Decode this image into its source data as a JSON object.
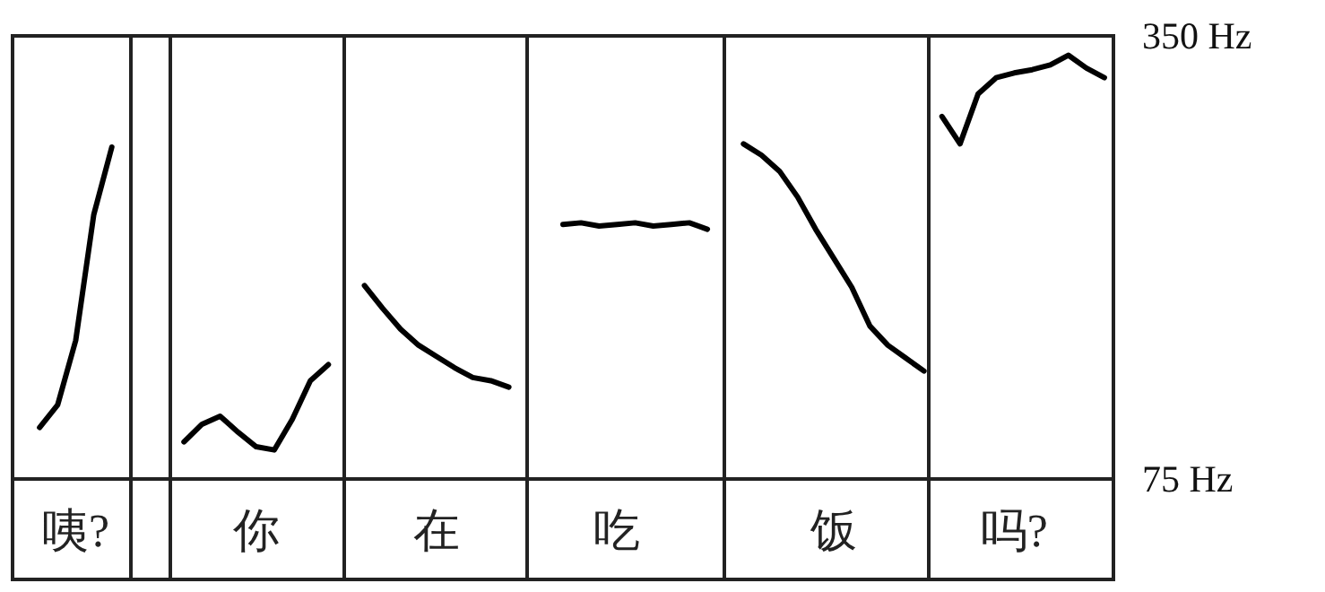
{
  "chart_data": {
    "type": "line",
    "categories": [
      null,
      null,
      null,
      "咦?",
      null,
      null,
      null,
      null,
      null,
      null,
      null,
      null,
      null,
      "你",
      null,
      null,
      null,
      null,
      null,
      null,
      null,
      null,
      null,
      "在",
      null,
      null,
      null,
      null,
      null,
      null,
      null,
      null,
      null,
      "吃",
      null,
      null,
      null,
      null,
      null,
      null,
      null,
      null,
      null,
      null,
      null,
      "饭",
      null,
      null,
      null,
      null,
      null,
      null,
      null,
      null,
      null,
      "吗?",
      null,
      null,
      null,
      null,
      null
    ],
    "series": [
      {
        "color": "#000000",
        "values": [
          null,
          107,
          121,
          161,
          239,
          281,
          null,
          null,
          null,
          null,
          null,
          null,
          null,
          null,
          null,
          null,
          null,
          null,
          null,
          null,
          null,
          null,
          null,
          null,
          null,
          null,
          null,
          null,
          null,
          null,
          null,
          null,
          null,
          null,
          null,
          null,
          null,
          null,
          null,
          null,
          null,
          null,
          null,
          null,
          null,
          null,
          null,
          null,
          null,
          null,
          null,
          null,
          null,
          null,
          null,
          null,
          null,
          null,
          null,
          null,
          null
        ]
      },
      {
        "color": "#000000",
        "values": [
          null,
          null,
          null,
          null,
          null,
          null,
          null,
          null,
          null,
          98,
          109,
          114,
          104,
          95,
          93,
          112,
          136,
          146,
          null,
          null,
          null,
          null,
          null,
          null,
          null,
          null,
          null,
          null,
          null,
          null,
          null,
          null,
          null,
          null,
          null,
          null,
          null,
          null,
          null,
          null,
          null,
          null,
          null,
          null,
          null,
          null,
          null,
          null,
          null,
          null,
          null,
          null,
          null,
          null,
          null,
          null,
          null,
          null,
          null,
          null,
          null
        ]
      },
      {
        "color": "#000000",
        "values": [
          null,
          null,
          null,
          null,
          null,
          null,
          null,
          null,
          null,
          null,
          null,
          null,
          null,
          null,
          null,
          null,
          null,
          null,
          null,
          195,
          181,
          168,
          158,
          151,
          144,
          138,
          136,
          132,
          null,
          null,
          null,
          null,
          null,
          null,
          null,
          null,
          null,
          null,
          null,
          null,
          null,
          null,
          null,
          null,
          null,
          null,
          null,
          null,
          null,
          null,
          null,
          null,
          null,
          null,
          null,
          null,
          null,
          null,
          null,
          null,
          null
        ]
      },
      {
        "color": "#000000",
        "values": [
          null,
          null,
          null,
          null,
          null,
          null,
          null,
          null,
          null,
          null,
          null,
          null,
          null,
          null,
          null,
          null,
          null,
          null,
          null,
          null,
          null,
          null,
          null,
          null,
          null,
          null,
          null,
          null,
          null,
          null,
          233,
          234,
          232,
          233,
          234,
          232,
          233,
          234,
          230,
          null,
          null,
          null,
          null,
          null,
          null,
          null,
          null,
          null,
          null,
          null,
          null,
          null,
          null,
          null,
          null,
          null,
          null,
          null,
          null,
          null,
          null
        ]
      },
      {
        "color": "#000000",
        "values": [
          null,
          null,
          null,
          null,
          null,
          null,
          null,
          null,
          null,
          null,
          null,
          null,
          null,
          null,
          null,
          null,
          null,
          null,
          null,
          null,
          null,
          null,
          null,
          null,
          null,
          null,
          null,
          null,
          null,
          null,
          null,
          null,
          null,
          null,
          null,
          null,
          null,
          null,
          null,
          null,
          283,
          276,
          266,
          250,
          230,
          212,
          194,
          170,
          158,
          150,
          142,
          null,
          null,
          null,
          null,
          null,
          null,
          null,
          null,
          null,
          null
        ]
      },
      {
        "color": "#000000",
        "values": [
          null,
          null,
          null,
          null,
          null,
          null,
          null,
          null,
          null,
          null,
          null,
          null,
          null,
          null,
          null,
          null,
          null,
          null,
          null,
          null,
          null,
          null,
          null,
          null,
          null,
          null,
          null,
          null,
          null,
          null,
          null,
          null,
          null,
          null,
          null,
          null,
          null,
          null,
          null,
          null,
          null,
          null,
          null,
          null,
          null,
          null,
          null,
          null,
          null,
          null,
          null,
          300,
          283,
          314,
          324,
          327,
          329,
          332,
          338,
          330,
          324
        ]
      }
    ],
    "ylim": [
      75,
      350
    ],
    "yticks": [
      {
        "value": 75,
        "label": "75 Hz"
      },
      {
        "value": 350,
        "label": "350 Hz"
      }
    ]
  }
}
